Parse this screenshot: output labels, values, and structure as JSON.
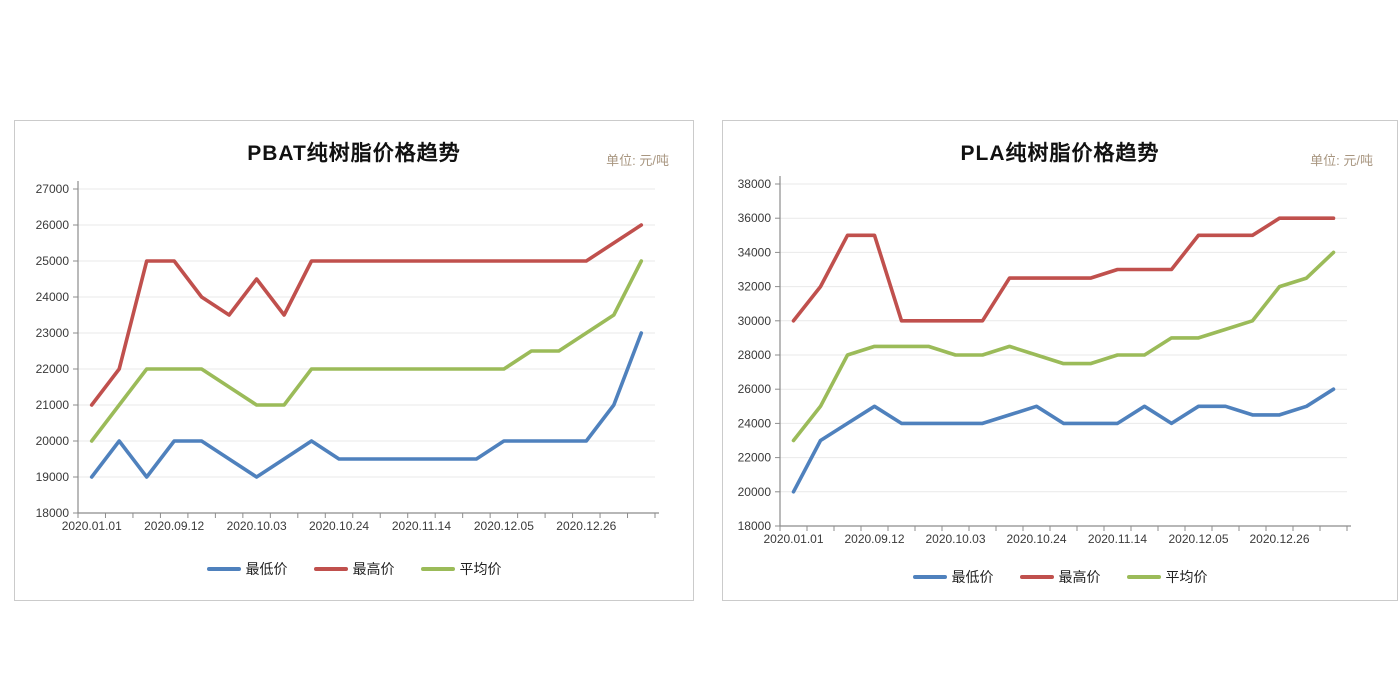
{
  "styles": {
    "background": "#ffffff",
    "card_border": "#cbcbcb",
    "axis_color": "#8c8c8c",
    "grid_color": "#e9e9e9",
    "label_color": "#3a3a3a",
    "title_color": "#111111",
    "unit_color": "#a89680",
    "series_blue": "#4F81BD",
    "series_red": "#C0504D",
    "series_green": "#9BBB59"
  },
  "chart_data": [
    {
      "type": "line",
      "title": "PBAT纯树脂价格趋势",
      "unit_label": "单位: 元/吨",
      "n_points": 21,
      "ylim": [
        18000,
        27000
      ],
      "y_step": 1000,
      "grid": true,
      "legend_position": "bottom",
      "x_tick_labels": [
        {
          "index": 0,
          "label": "2020.01.01"
        },
        {
          "index": 3,
          "label": "2020.09.12"
        },
        {
          "index": 6,
          "label": "2020.10.03"
        },
        {
          "index": 9,
          "label": "2020.10.24"
        },
        {
          "index": 12,
          "label": "2020.11.14"
        },
        {
          "index": 15,
          "label": "2020.12.05"
        },
        {
          "index": 18,
          "label": "2020.12.26"
        }
      ],
      "series": [
        {
          "name": "最低价",
          "color": "#4F81BD",
          "values": [
            19000,
            20000,
            19000,
            20000,
            20000,
            19500,
            19000,
            19500,
            20000,
            19500,
            19500,
            19500,
            19500,
            19500,
            19500,
            20000,
            20000,
            20000,
            20000,
            21000,
            23000
          ]
        },
        {
          "name": "最高价",
          "color": "#C0504D",
          "values": [
            21000,
            22000,
            25000,
            25000,
            24000,
            23500,
            24500,
            23500,
            25000,
            25000,
            25000,
            25000,
            25000,
            25000,
            25000,
            25000,
            25000,
            25000,
            25000,
            25500,
            26000
          ]
        },
        {
          "name": "平均价",
          "color": "#9BBB59",
          "values": [
            20000,
            21000,
            22000,
            22000,
            22000,
            21500,
            21000,
            21000,
            22000,
            22000,
            22000,
            22000,
            22000,
            22000,
            22000,
            22000,
            22500,
            22500,
            23000,
            23500,
            25000
          ]
        }
      ]
    },
    {
      "type": "line",
      "title": "PLA纯树脂价格趋势",
      "unit_label": "单位: 元/吨",
      "n_points": 21,
      "ylim": [
        18000,
        38000
      ],
      "y_step": 2000,
      "grid": true,
      "legend_position": "bottom",
      "x_tick_labels": [
        {
          "index": 0,
          "label": "2020.01.01"
        },
        {
          "index": 3,
          "label": "2020.09.12"
        },
        {
          "index": 6,
          "label": "2020.10.03"
        },
        {
          "index": 9,
          "label": "2020.10.24"
        },
        {
          "index": 12,
          "label": "2020.11.14"
        },
        {
          "index": 15,
          "label": "2020.12.05"
        },
        {
          "index": 18,
          "label": "2020.12.26"
        }
      ],
      "series": [
        {
          "name": "最低价",
          "color": "#4F81BD",
          "values": [
            20000,
            23000,
            24000,
            25000,
            24000,
            24000,
            24000,
            24000,
            24500,
            25000,
            24000,
            24000,
            24000,
            25000,
            24000,
            25000,
            25000,
            24500,
            24500,
            25000,
            26000
          ]
        },
        {
          "name": "最高价",
          "color": "#C0504D",
          "values": [
            30000,
            32000,
            35000,
            35000,
            30000,
            30000,
            30000,
            30000,
            32500,
            32500,
            32500,
            32500,
            33000,
            33000,
            33000,
            35000,
            35000,
            35000,
            36000,
            36000,
            36000
          ]
        },
        {
          "name": "平均价",
          "color": "#9BBB59",
          "values": [
            23000,
            25000,
            28000,
            28500,
            28500,
            28500,
            28000,
            28000,
            28500,
            28000,
            27500,
            27500,
            28000,
            28000,
            29000,
            29000,
            29500,
            30000,
            32000,
            32500,
            34000
          ]
        }
      ]
    }
  ]
}
